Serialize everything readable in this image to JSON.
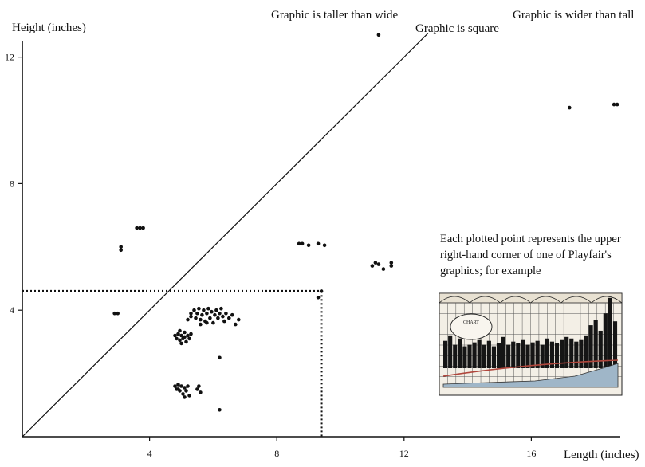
{
  "chart_data": {
    "type": "scatter",
    "title": "",
    "xlabel": "Length (inches)",
    "ylabel": "Height (inches)",
    "xlim": [
      0,
      19.5
    ],
    "ylim": [
      0,
      13.0
    ],
    "xticks": [
      4,
      8,
      12,
      16
    ],
    "yticks": [
      4,
      8,
      12
    ],
    "grid": false,
    "annotations": {
      "taller": "Graphic is taller than wide",
      "square": "Graphic is square",
      "wider": "Graphic is wider than tall",
      "caption": "Each plotted point represents the upper right-hand corner of one of Playfair's graphics; for example"
    },
    "example_chart": {
      "title": "CHART",
      "corner": [
        9.4,
        4.6
      ]
    },
    "points": [
      [
        11.2,
        12.7
      ],
      [
        17.2,
        10.4
      ],
      [
        18.6,
        10.5
      ],
      [
        18.7,
        10.5
      ],
      [
        2.9,
        3.9
      ],
      [
        3.0,
        3.9
      ],
      [
        3.1,
        6.0
      ],
      [
        3.1,
        5.9
      ],
      [
        3.6,
        6.6
      ],
      [
        3.7,
        6.6
      ],
      [
        3.8,
        6.6
      ],
      [
        8.7,
        6.1
      ],
      [
        8.8,
        6.1
      ],
      [
        9.0,
        6.05
      ],
      [
        9.3,
        6.1
      ],
      [
        9.5,
        6.05
      ],
      [
        11.0,
        5.4
      ],
      [
        11.1,
        5.5
      ],
      [
        11.2,
        5.45
      ],
      [
        11.35,
        5.3
      ],
      [
        11.6,
        5.5
      ],
      [
        11.6,
        5.4
      ],
      [
        9.3,
        4.4
      ],
      [
        9.4,
        4.6
      ],
      [
        5.2,
        3.7
      ],
      [
        5.3,
        3.8
      ],
      [
        5.3,
        3.9
      ],
      [
        5.4,
        4.0
      ],
      [
        5.45,
        3.75
      ],
      [
        5.5,
        3.9
      ],
      [
        5.55,
        4.05
      ],
      [
        5.6,
        3.7
      ],
      [
        5.65,
        3.85
      ],
      [
        5.7,
        4.0
      ],
      [
        5.75,
        3.65
      ],
      [
        5.8,
        3.9
      ],
      [
        5.85,
        4.05
      ],
      [
        5.9,
        3.75
      ],
      [
        5.95,
        3.95
      ],
      [
        6.0,
        3.6
      ],
      [
        6.05,
        3.85
      ],
      [
        6.1,
        4.0
      ],
      [
        6.15,
        3.75
      ],
      [
        6.2,
        3.9
      ],
      [
        6.3,
        3.8
      ],
      [
        6.35,
        3.65
      ],
      [
        6.4,
        3.9
      ],
      [
        6.5,
        3.75
      ],
      [
        6.6,
        3.85
      ],
      [
        6.7,
        3.55
      ],
      [
        6.8,
        3.7
      ],
      [
        5.6,
        3.55
      ],
      [
        5.8,
        3.6
      ],
      [
        6.25,
        4.05
      ],
      [
        4.8,
        3.2
      ],
      [
        4.85,
        3.1
      ],
      [
        4.9,
        3.25
      ],
      [
        4.95,
        3.05
      ],
      [
        5.0,
        3.2
      ],
      [
        5.05,
        3.1
      ],
      [
        5.1,
        3.3
      ],
      [
        5.15,
        3.0
      ],
      [
        5.2,
        3.2
      ],
      [
        5.25,
        3.1
      ],
      [
        5.0,
        2.95
      ],
      [
        5.1,
        3.15
      ],
      [
        5.3,
        3.25
      ],
      [
        4.95,
        3.35
      ],
      [
        6.2,
        2.5
      ],
      [
        4.8,
        1.6
      ],
      [
        4.85,
        1.5
      ],
      [
        4.9,
        1.65
      ],
      [
        4.95,
        1.45
      ],
      [
        5.0,
        1.6
      ],
      [
        5.05,
        1.35
      ],
      [
        5.1,
        1.55
      ],
      [
        5.15,
        1.45
      ],
      [
        5.2,
        1.6
      ],
      [
        5.25,
        1.3
      ],
      [
        5.5,
        1.5
      ],
      [
        5.6,
        1.4
      ],
      [
        5.55,
        1.6
      ],
      [
        5.1,
        1.25
      ],
      [
        4.9,
        1.5
      ],
      [
        6.2,
        0.85
      ]
    ]
  }
}
